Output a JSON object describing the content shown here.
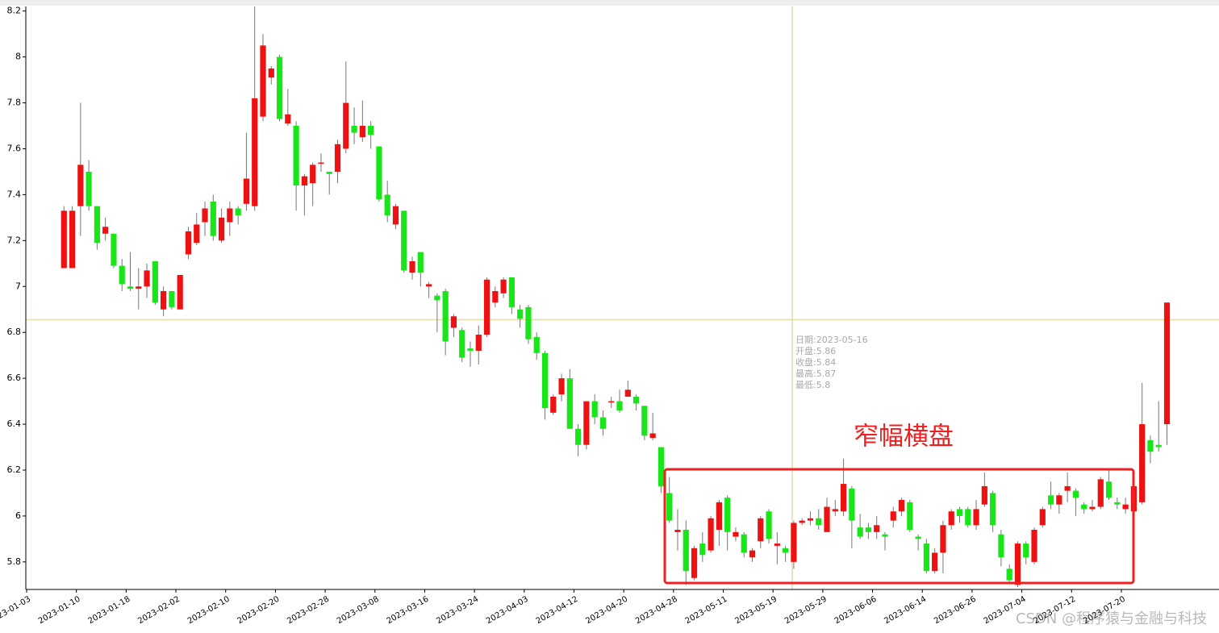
{
  "chart_data": {
    "type": "candlestick",
    "up_color": "#ee1111",
    "down_color": "#19e619",
    "ylim": [
      5.68,
      8.22
    ],
    "yticks": [
      5.8,
      6,
      6.2,
      6.4,
      6.6,
      6.8,
      7,
      7.2,
      7.4,
      7.6,
      7.8,
      8,
      8.2
    ],
    "categories": [
      "2023-01-03",
      null,
      null,
      null,
      null,
      null,
      "2023-01-10",
      null,
      null,
      null,
      null,
      null,
      "2023-01-18",
      null,
      null,
      null,
      null,
      null,
      "2023-02-02",
      null,
      null,
      null,
      null,
      null,
      "2023-02-10",
      null,
      null,
      null,
      null,
      null,
      "2023-02-20",
      null,
      null,
      null,
      null,
      null,
      "2023-02-28",
      null,
      null,
      null,
      null,
      null,
      "2023-03-08",
      null,
      null,
      null,
      null,
      null,
      "2023-03-16",
      null,
      null,
      null,
      null,
      null,
      "2023-03-24",
      null,
      null,
      null,
      null,
      null,
      "2023-04-03",
      null,
      null,
      null,
      null,
      null,
      "2023-04-12",
      null,
      null,
      null,
      null,
      null,
      "2023-04-20",
      null,
      null,
      null,
      null,
      null,
      "2023-04-28",
      null,
      null,
      null,
      null,
      null,
      "2023-05-11",
      null,
      null,
      null,
      null,
      null,
      "2023-05-19",
      null,
      null,
      null,
      null,
      null,
      "2023-05-29",
      null,
      null,
      null,
      null,
      null,
      "2023-06-06",
      null,
      null,
      null,
      null,
      null,
      "2023-06-14",
      null,
      null,
      null,
      null,
      null,
      "2023-06-26",
      null,
      null,
      null,
      null,
      null,
      "2023-07-04",
      null,
      null,
      null,
      null,
      null,
      "2023-07-12",
      null,
      null,
      null,
      null,
      null,
      "2023-07-20",
      null,
      null,
      null,
      null,
      null
    ],
    "open": [
      null,
      null,
      null,
      null,
      7.08,
      7.08,
      7.35,
      7.5,
      7.35,
      7.23,
      7.23,
      7.09,
      7.0,
      6.99,
      7.0,
      7.11,
      6.9,
      6.98,
      6.9,
      7.14,
      7.19,
      7.28,
      7.37,
      7.2,
      7.28,
      7.34,
      7.36,
      7.35,
      7.74,
      7.91,
      8.0,
      7.71,
      7.7,
      7.44,
      7.45,
      7.54,
      7.5,
      7.5,
      7.6,
      7.7,
      7.65,
      7.7,
      7.61,
      7.4,
      7.27,
      7.33,
      7.06,
      7.15,
      7.0,
      6.96,
      6.98,
      6.82,
      6.81,
      6.73,
      6.72,
      6.79,
      6.93,
      6.97,
      7.04,
      6.9,
      6.91,
      6.78,
      6.71,
      6.45,
      6.53,
      6.6,
      6.38,
      6.31,
      6.5,
      6.43,
      6.5,
      6.5,
      6.52,
      6.52,
      6.48,
      6.34,
      6.3,
      6.1,
      5.93,
      5.94,
      5.73,
      5.88,
      5.85,
      5.94,
      6.08,
      5.91,
      5.92,
      5.82,
      5.89,
      6.02,
      5.87,
      5.86,
      5.8,
      5.97,
      5.98,
      5.99,
      5.93,
      6.02,
      6.02,
      6.12,
      5.95,
      5.95,
      5.93,
      5.92,
      5.98,
      6.02,
      6.06,
      5.91,
      5.88,
      5.76,
      5.84,
      5.96,
      6.03,
      6.03,
      5.96,
      6.05,
      6.1,
      5.92,
      5.77,
      5.7,
      5.88,
      5.8,
      5.96,
      6.09,
      6.05,
      6.11,
      6.11,
      6.05,
      6.03,
      6.04,
      6.15,
      6.06,
      6.03,
      6.02,
      6.06,
      6.33,
      6.31,
      6.4
    ],
    "close": [
      null,
      null,
      null,
      null,
      7.33,
      7.33,
      7.53,
      7.35,
      7.19,
      7.26,
      7.09,
      7.01,
      6.99,
      7.0,
      7.07,
      6.93,
      6.98,
      6.91,
      7.05,
      7.24,
      7.27,
      7.34,
      7.22,
      7.3,
      7.34,
      7.31,
      7.47,
      7.82,
      8.05,
      7.95,
      7.73,
      7.75,
      7.44,
      7.48,
      7.53,
      7.54,
      7.49,
      7.62,
      7.8,
      7.67,
      7.7,
      7.66,
      7.38,
      7.31,
      7.35,
      7.07,
      7.11,
      7.06,
      7.01,
      6.94,
      6.76,
      6.87,
      6.69,
      6.72,
      6.79,
      7.03,
      6.98,
      7.03,
      6.91,
      6.86,
      6.77,
      6.71,
      6.47,
      6.52,
      6.6,
      6.38,
      6.31,
      6.5,
      6.43,
      6.38,
      6.5,
      6.46,
      6.55,
      6.49,
      6.35,
      6.36,
      6.13,
      5.98,
      5.94,
      5.76,
      5.86,
      5.83,
      5.99,
      6.06,
      5.93,
      5.93,
      5.84,
      5.85,
      5.99,
      5.9,
      5.88,
      5.84,
      5.97,
      5.98,
      5.99,
      5.96,
      6.04,
      6.03,
      6.14,
      5.98,
      5.91,
      5.93,
      5.96,
      5.91,
      6.02,
      6.07,
      5.94,
      5.9,
      5.76,
      5.84,
      5.96,
      6.02,
      6.0,
      5.96,
      6.03,
      6.13,
      5.96,
      5.82,
      5.72,
      5.88,
      5.82,
      5.94,
      6.03,
      6.05,
      6.09,
      6.13,
      6.08,
      6.03,
      6.04,
      6.16,
      6.08,
      6.05,
      6.05,
      6.13,
      6.4,
      6.28,
      6.3,
      6.93
    ],
    "high": [
      null,
      null,
      null,
      null,
      7.35,
      7.35,
      7.8,
      7.55,
      7.35,
      7.3,
      7.23,
      7.12,
      7.15,
      7.08,
      7.1,
      7.11,
      7.0,
      6.98,
      7.05,
      7.26,
      7.32,
      7.37,
      7.4,
      7.34,
      7.37,
      7.35,
      7.67,
      8.22,
      8.1,
      7.96,
      8.01,
      7.86,
      7.72,
      7.49,
      7.54,
      7.58,
      7.5,
      7.64,
      7.98,
      7.78,
      7.81,
      7.72,
      7.61,
      7.46,
      7.36,
      7.33,
      7.13,
      7.15,
      7.02,
      6.97,
      6.99,
      6.88,
      6.82,
      6.76,
      6.83,
      7.04,
      7.0,
      7.04,
      7.04,
      6.92,
      6.92,
      6.8,
      6.72,
      6.53,
      6.62,
      6.64,
      6.4,
      6.5,
      6.53,
      6.46,
      6.52,
      6.55,
      6.59,
      6.53,
      6.48,
      6.45,
      6.3,
      6.17,
      6.03,
      5.98,
      5.87,
      5.93,
      6.0,
      6.07,
      6.09,
      5.95,
      5.93,
      5.86,
      6.0,
      6.03,
      5.93,
      5.87,
      5.98,
      5.99,
      6.02,
      6.03,
      6.08,
      6.07,
      6.25,
      6.13,
      6.01,
      5.97,
      6.0,
      5.93,
      6.04,
      6.08,
      6.07,
      5.92,
      5.9,
      5.86,
      5.98,
      6.03,
      6.04,
      6.04,
      6.07,
      6.19,
      6.11,
      5.94,
      5.79,
      5.89,
      5.89,
      5.95,
      6.04,
      6.15,
      6.1,
      6.19,
      6.12,
      6.06,
      6.07,
      6.17,
      6.2,
      6.08,
      6.08,
      6.17,
      6.58,
      6.35,
      6.5,
      6.93
    ],
    "low": [
      null,
      null,
      null,
      null,
      7.08,
      7.08,
      7.22,
      7.33,
      7.16,
      7.2,
      7.08,
      6.98,
      6.98,
      6.9,
      6.95,
      6.92,
      6.87,
      6.9,
      6.9,
      7.12,
      7.18,
      7.22,
      7.2,
      7.19,
      7.22,
      7.27,
      7.33,
      7.33,
      7.72,
      7.88,
      7.72,
      7.7,
      7.33,
      7.31,
      7.35,
      7.5,
      7.4,
      7.45,
      7.58,
      7.62,
      7.63,
      7.6,
      7.37,
      7.28,
      7.25,
      7.06,
      7.03,
      7.0,
      6.95,
      6.8,
      6.7,
      6.78,
      6.67,
      6.65,
      6.66,
      6.78,
      6.91,
      6.95,
      6.88,
      6.82,
      6.75,
      6.68,
      6.42,
      6.44,
      6.5,
      6.38,
      6.26,
      6.29,
      6.4,
      6.35,
      6.47,
      6.45,
      6.52,
      6.46,
      6.33,
      6.33,
      6.1,
      5.97,
      5.85,
      5.7,
      5.72,
      5.8,
      5.84,
      5.87,
      5.85,
      5.89,
      5.82,
      5.8,
      5.86,
      5.88,
      5.79,
      5.8,
      5.77,
      5.96,
      5.96,
      5.94,
      5.93,
      6.0,
      6.0,
      5.86,
      5.9,
      5.9,
      5.9,
      5.85,
      5.95,
      6.0,
      5.93,
      5.85,
      5.75,
      5.75,
      5.75,
      5.94,
      5.97,
      5.95,
      5.94,
      6.04,
      5.93,
      5.78,
      5.71,
      5.69,
      5.79,
      5.79,
      5.95,
      6.03,
      6.01,
      6.06,
      6.0,
      6.01,
      6.02,
      6.03,
      6.07,
      6.03,
      6.01,
      5.95,
      6.05,
      6.23,
      6.28,
      6.31
    ],
    "crosshair_y": 6.855,
    "tooltip": [
      "日期:2023-05-16",
      "开盘:5.86",
      "收盘:5.84",
      "最高:5.87",
      "最低:5.8"
    ],
    "annotation": "窄幅横盘",
    "watermark": "CSDN @程序猿与金融与科技"
  }
}
